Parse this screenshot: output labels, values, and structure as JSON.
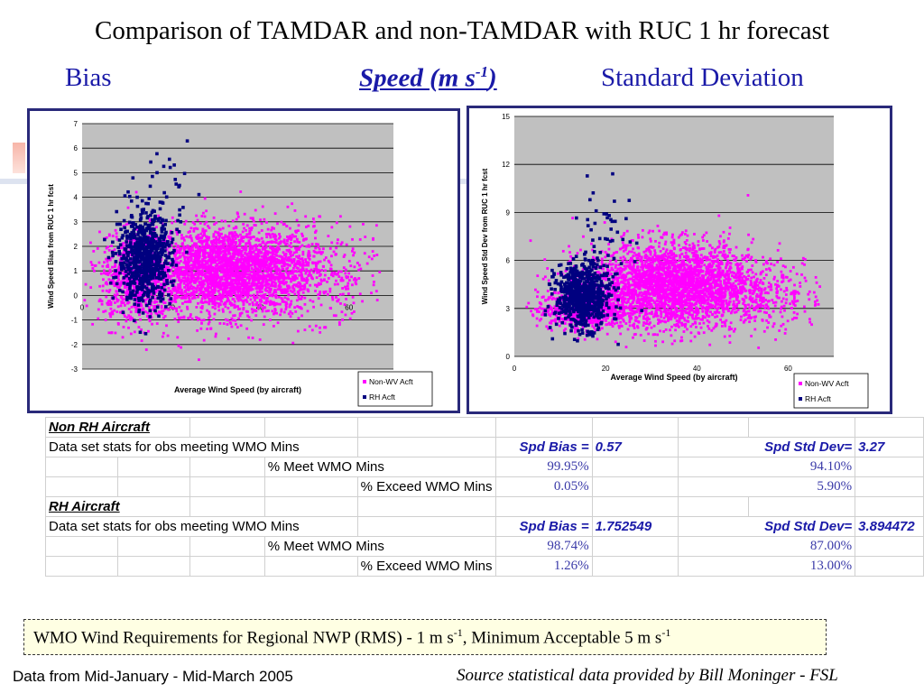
{
  "slide": {
    "title": "Comparison of TAMDAR and non-TAMDAR with RUC 1 hr forecast",
    "bias_label": "Bias",
    "speed_label_main": "Speed (m s",
    "speed_label_sup": "-1",
    "speed_label_end": ")",
    "std_label": "Standard Deviation"
  },
  "colors": {
    "accent_blue": "#1a1aa8",
    "plot_bg": "#c0c0c0",
    "non_wv": "#ff00ff",
    "rh": "#000080",
    "frame": "#29297a"
  },
  "chart_data": [
    {
      "type": "scatter",
      "title": "",
      "xlabel": "Average Wind Speed (by aircraft)",
      "ylabel": "Wind Speed Bias from RUC 1 hr fcst",
      "xlim": [
        0,
        70
      ],
      "ylim": [
        -3,
        7
      ],
      "xticks": [
        "0",
        "20",
        "40",
        "60"
      ],
      "yticks": [
        "-3",
        "-2",
        "-1",
        "0",
        "1",
        "2",
        "3",
        "4",
        "5",
        "6",
        "7"
      ],
      "grid": true,
      "legend_placement": "bottom-right",
      "series": [
        {
          "name": "Non-WV Acft",
          "clusters": [
            {
              "x": 32,
              "y": 1.0,
              "sx": 10,
              "sy": 0.9,
              "n": 2600
            },
            {
              "x": 12,
              "y": 0.6,
              "sx": 4,
              "sy": 0.9,
              "n": 700
            },
            {
              "x": 45,
              "y": 1.0,
              "sx": 12,
              "sy": 1.0,
              "n": 600
            }
          ]
        },
        {
          "name": "RH Acft",
          "clusters": [
            {
              "x": 14,
              "y": 1.5,
              "sx": 3,
              "sy": 0.9,
              "n": 700
            },
            {
              "x": 18,
              "y": 4.2,
              "sx": 3,
              "sy": 1.0,
              "n": 40
            }
          ]
        }
      ]
    },
    {
      "type": "scatter",
      "title": "",
      "xlabel": "Average Wind Speed (by aircraft)",
      "ylabel": "Wind Speed Std Dev from RUC 1 hr fcst",
      "xlim": [
        0,
        70
      ],
      "ylim": [
        0,
        15
      ],
      "xticks": [
        "0",
        "20",
        "40",
        "60"
      ],
      "yticks": [
        "0",
        "3",
        "6",
        "9",
        "12",
        "15"
      ],
      "grid": true,
      "legend_placement": "bottom-right",
      "series": [
        {
          "name": "Non-WV Acft",
          "clusters": [
            {
              "x": 34,
              "y": 4.5,
              "sx": 9,
              "sy": 1.3,
              "n": 2600
            },
            {
              "x": 15,
              "y": 2.9,
              "sx": 5,
              "sy": 0.6,
              "n": 600
            },
            {
              "x": 50,
              "y": 3.8,
              "sx": 10,
              "sy": 1.2,
              "n": 500
            }
          ]
        },
        {
          "name": "RH Acft",
          "clusters": [
            {
              "x": 15,
              "y": 3.8,
              "sx": 3,
              "sy": 1.0,
              "n": 700
            },
            {
              "x": 20,
              "y": 8.5,
              "sx": 3,
              "sy": 1.6,
              "n": 40
            }
          ]
        }
      ]
    }
  ],
  "table": {
    "non_rh_header": "Non RH Aircraft",
    "rh_header": "RH Aircraft",
    "stats_label": "Data set stats for obs meeting WMO Mins",
    "meet_label": "% Meet WMO Mins",
    "exceed_label": "% Exceed WMO Mins",
    "bias_label": "Spd Bias =",
    "std_label": "Spd Std Dev=",
    "non_rh": {
      "bias": "0.57",
      "std": "3.27",
      "bias_meet": "99.95%",
      "std_meet": "94.10%",
      "bias_exceed": "0.05%",
      "std_exceed": "5.90%"
    },
    "rh": {
      "bias": "1.752549",
      "std": "3.894472",
      "bias_meet": "98.74%",
      "std_meet": "87.00%",
      "bias_exceed": "1.26%",
      "std_exceed": "13.00%"
    }
  },
  "footer": {
    "req_main": "WMO Wind Requirements for Regional NWP (RMS) -  1 m s",
    "req_sup1": "-1",
    "req_mid": ",   Minimum Acceptable 5 m s",
    "req_sup2": "-1",
    "data_range": "Data from Mid-January - Mid-March 2005",
    "source": "Source statistical data provided by Bill Moninger - FSL"
  }
}
